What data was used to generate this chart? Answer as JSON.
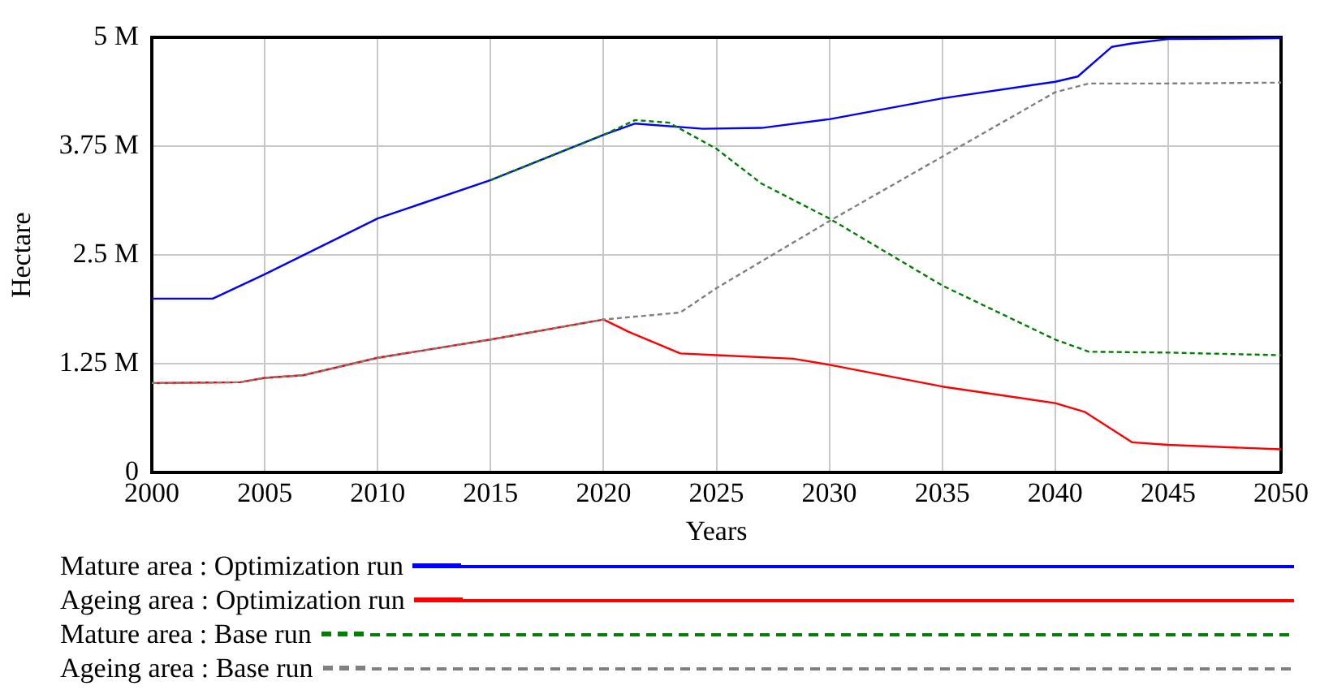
{
  "chart_data": {
    "type": "line",
    "xlabel": "Years",
    "ylabel": "Hectare",
    "xlim": [
      2000,
      2050
    ],
    "xticks": [
      2000,
      2005,
      2010,
      2015,
      2020,
      2025,
      2030,
      2035,
      2040,
      2045,
      2050
    ],
    "ylim": [
      0,
      5000000
    ],
    "yticks": [
      {
        "value": 0,
        "label": "0"
      },
      {
        "value": 1250000,
        "label": "1.25 M"
      },
      {
        "value": 2500000,
        "label": "2.5 M"
      },
      {
        "value": 3750000,
        "label": "3.75 M"
      },
      {
        "value": 5000000,
        "label": "5 M"
      }
    ],
    "grid": true,
    "legend": "bottom",
    "marker": "none",
    "series": [
      {
        "name": "Mature area : Optimization run",
        "color": "#0000ff",
        "line_style": "solid",
        "x": [
          2000,
          2002.7,
          2005,
          2010,
          2015,
          2020,
          2021.4,
          2024.4,
          2027,
          2030,
          2035,
          2040,
          2041,
          2042.5,
          2043.4,
          2045,
          2050
        ],
        "values": [
          2000000,
          2000000,
          2280000,
          2920000,
          3360000,
          3880000,
          4010000,
          3950000,
          3960000,
          4060000,
          4300000,
          4490000,
          4550000,
          4890000,
          4930000,
          4980000,
          4990000
        ]
      },
      {
        "name": "Ageing area : Optimization run",
        "color": "#ff0000",
        "line_style": "solid",
        "x": [
          2000,
          2003.9,
          2005,
          2006.7,
          2010,
          2015,
          2020,
          2021.1,
          2023.4,
          2025,
          2028.4,
          2030,
          2035,
          2040,
          2041.3,
          2043.4,
          2045,
          2050
        ],
        "values": [
          1030000,
          1040000,
          1090000,
          1120000,
          1320000,
          1530000,
          1760000,
          1620000,
          1370000,
          1350000,
          1310000,
          1240000,
          990000,
          800000,
          700000,
          350000,
          320000,
          270000
        ]
      },
      {
        "name": "Mature area : Base run",
        "color": "#008000",
        "line_style": "dashed",
        "x": [
          2015,
          2020,
          2021.4,
          2022.9,
          2025,
          2027,
          2030,
          2035,
          2040,
          2041.5,
          2045,
          2050
        ],
        "values": [
          3360000,
          3880000,
          4050000,
          4020000,
          3720000,
          3320000,
          2920000,
          2150000,
          1530000,
          1390000,
          1380000,
          1350000
        ]
      },
      {
        "name": "Ageing area : Base run",
        "color": "#808080",
        "line_style": "dashed",
        "x": [
          2000,
          2003.9,
          2005,
          2006.7,
          2010,
          2015,
          2020,
          2023.4,
          2025,
          2030,
          2035,
          2040,
          2041.5,
          2045,
          2050
        ],
        "values": [
          1030000,
          1040000,
          1090000,
          1120000,
          1320000,
          1530000,
          1760000,
          1840000,
          2120000,
          2890000,
          3630000,
          4370000,
          4470000,
          4470000,
          4480000
        ]
      }
    ]
  }
}
